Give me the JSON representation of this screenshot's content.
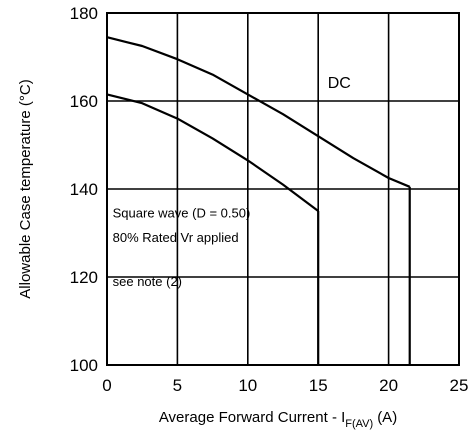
{
  "chart_data": {
    "type": "line",
    "title": "",
    "xlabel": "Average Forward Current - I",
    "xlabel_subscript": "F(AV)",
    "xlabel_unit": "(A)",
    "ylabel": "Allowable Case temperature (°C)",
    "xlim": [
      0,
      25
    ],
    "ylim": [
      100,
      180
    ],
    "x_ticks": [
      0,
      5,
      10,
      15,
      20,
      25
    ],
    "y_ticks": [
      100,
      120,
      140,
      160,
      180
    ],
    "x_tick_labels": [
      "0",
      "5",
      "10",
      "15",
      "20",
      "25"
    ],
    "y_tick_labels": [
      "100",
      "120",
      "140",
      "160",
      "180"
    ],
    "grid": true,
    "series": [
      {
        "name": "DC",
        "color": "#000000",
        "points": [
          [
            0,
            174.5
          ],
          [
            2.5,
            172.5
          ],
          [
            5,
            169.5
          ],
          [
            7.5,
            166
          ],
          [
            10,
            161.5
          ],
          [
            12.5,
            157
          ],
          [
            15,
            152
          ],
          [
            17.5,
            147
          ],
          [
            20,
            142.5
          ],
          [
            21.5,
            140.5
          ]
        ],
        "drop": [
          [
            21.5,
            140.5
          ],
          [
            21.5,
            100
          ]
        ]
      },
      {
        "name": "",
        "color": "#000000",
        "points": [
          [
            0,
            161.5
          ],
          [
            2.5,
            159.5
          ],
          [
            5,
            156
          ],
          [
            7.5,
            151.5
          ],
          [
            10,
            146.5
          ],
          [
            12.5,
            141
          ],
          [
            15,
            135
          ]
        ],
        "drop": [
          [
            15,
            135
          ],
          [
            15,
            100
          ]
        ]
      }
    ],
    "annotations": {
      "dc_label": "DC",
      "square_wave": "Square wave (D = 0.50)",
      "rated": "80% Rated Vr  applied",
      "note": "see note (2)"
    }
  }
}
